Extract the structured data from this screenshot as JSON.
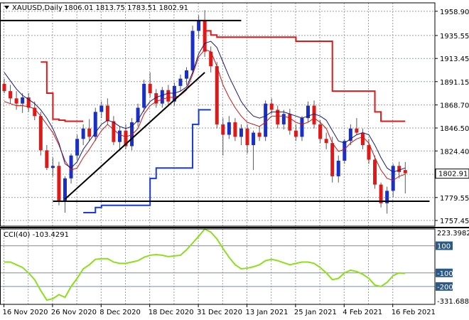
{
  "header": {
    "symbol": "XAUUSD,Daily",
    "ohlc": "1806.01 1813.75 1783.51 1802.91"
  },
  "indicator": {
    "label": "CCI(40) -103.4291"
  },
  "price_axis": {
    "ticks": [
      "1958.90",
      "1935.55",
      "1913.45",
      "1891.15",
      "1868.70",
      "1846.50",
      "1824.40",
      "1779.55",
      "1757.45"
    ],
    "current": "1802.91"
  },
  "cci_axis": {
    "ticks": [
      "223.3982",
      "100",
      "-100",
      "-200",
      "-331.6881"
    ]
  },
  "dates": [
    "16 Nov 2020",
    "26 Nov 2020",
    "8 Dec 2020",
    "18 Dec 2020",
    "31 Dec 2020",
    "13 Jan 2021",
    "25 Jan 2021",
    "4 Feb 2021",
    "16 Feb 2021"
  ],
  "colors": {
    "bull": "#1a2fc8",
    "bear": "#e01818",
    "wick": "#5a5a5a",
    "ma_fast": "#d01515",
    "ma_slow": "#1a1a7a",
    "stop_high": "#e01818",
    "stop_low": "#1a3adc",
    "cci": "#8ce01a",
    "grid": "#9aa0a6",
    "axis": "#000000"
  },
  "chart_data": [
    {
      "type": "candlestick",
      "y_axis_ticks": [
        1958.9,
        1935.55,
        1913.45,
        1891.15,
        1868.7,
        1846.5,
        1824.4,
        1779.55,
        1757.45
      ],
      "ylim": [
        1752,
        1967
      ],
      "x_tick_labels": [
        "16 Nov 2020",
        "26 Nov 2020",
        "8 Dec 2020",
        "18 Dec 2020",
        "31 Dec 2020",
        "13 Jan 2021",
        "25 Jan 2021",
        "4 Feb 2021",
        "16 Feb 2021"
      ],
      "x_tick_bar_index": [
        0,
        8,
        16,
        24,
        32,
        40,
        48,
        56,
        64
      ],
      "last_price": 1802.91,
      "candles": [
        [
          1889,
          1894,
          1880,
          1882
        ],
        [
          1882,
          1888,
          1870,
          1875
        ],
        [
          1875,
          1882,
          1864,
          1870
        ],
        [
          1870,
          1880,
          1861,
          1876
        ],
        [
          1876,
          1880,
          1862,
          1866
        ],
        [
          1866,
          1872,
          1854,
          1858
        ],
        [
          1858,
          1862,
          1820,
          1825
        ],
        [
          1825,
          1830,
          1806,
          1808
        ],
        [
          1808,
          1818,
          1800,
          1810
        ],
        [
          1810,
          1814,
          1772,
          1776
        ],
        [
          1776,
          1800,
          1765,
          1798
        ],
        [
          1798,
          1822,
          1793,
          1820
        ],
        [
          1820,
          1840,
          1816,
          1836
        ],
        [
          1836,
          1850,
          1830,
          1846
        ],
        [
          1846,
          1855,
          1834,
          1838
        ],
        [
          1838,
          1866,
          1834,
          1862
        ],
        [
          1862,
          1872,
          1856,
          1868
        ],
        [
          1868,
          1875,
          1850,
          1853
        ],
        [
          1853,
          1858,
          1830,
          1833
        ],
        [
          1833,
          1848,
          1825,
          1844
        ],
        [
          1844,
          1850,
          1826,
          1829
        ],
        [
          1829,
          1856,
          1825,
          1852
        ],
        [
          1852,
          1870,
          1848,
          1866
        ],
        [
          1866,
          1893,
          1862,
          1889
        ],
        [
          1889,
          1900,
          1876,
          1880
        ],
        [
          1880,
          1884,
          1866,
          1870
        ],
        [
          1870,
          1886,
          1866,
          1883
        ],
        [
          1883,
          1888,
          1868,
          1872
        ],
        [
          1872,
          1890,
          1868,
          1887
        ],
        [
          1887,
          1898,
          1882,
          1894
        ],
        [
          1894,
          1905,
          1888,
          1902
        ],
        [
          1902,
          1945,
          1898,
          1940
        ],
        [
          1940,
          1955,
          1932,
          1950
        ],
        [
          1950,
          1960,
          1915,
          1920
        ],
        [
          1920,
          1925,
          1900,
          1906
        ],
        [
          1906,
          1910,
          1846,
          1850
        ],
        [
          1850,
          1856,
          1820,
          1840
        ],
        [
          1840,
          1858,
          1836,
          1852
        ],
        [
          1852,
          1856,
          1834,
          1838
        ],
        [
          1838,
          1850,
          1830,
          1846
        ],
        [
          1846,
          1850,
          1822,
          1830
        ],
        [
          1830,
          1844,
          1806,
          1842
        ],
        [
          1842,
          1848,
          1834,
          1838
        ],
        [
          1838,
          1873,
          1834,
          1870
        ],
        [
          1870,
          1875,
          1860,
          1864
        ],
        [
          1864,
          1868,
          1846,
          1850
        ],
        [
          1850,
          1864,
          1845,
          1860
        ],
        [
          1860,
          1865,
          1840,
          1844
        ],
        [
          1844,
          1850,
          1834,
          1838
        ],
        [
          1838,
          1858,
          1834,
          1856
        ],
        [
          1856,
          1872,
          1852,
          1868
        ],
        [
          1868,
          1873,
          1846,
          1850
        ],
        [
          1850,
          1854,
          1832,
          1836
        ],
        [
          1836,
          1842,
          1826,
          1832
        ],
        [
          1832,
          1838,
          1794,
          1800
        ],
        [
          1800,
          1820,
          1794,
          1815
        ],
        [
          1815,
          1836,
          1812,
          1834
        ],
        [
          1834,
          1850,
          1830,
          1846
        ],
        [
          1846,
          1856,
          1840,
          1842
        ],
        [
          1842,
          1846,
          1826,
          1830
        ],
        [
          1830,
          1836,
          1812,
          1816
        ],
        [
          1816,
          1820,
          1788,
          1792
        ],
        [
          1792,
          1794,
          1770,
          1774
        ],
        [
          1774,
          1790,
          1764,
          1786
        ],
        [
          1786,
          1812,
          1780,
          1810
        ],
        [
          1810,
          1814,
          1798,
          1804
        ],
        [
          1806,
          1813.75,
          1783.51,
          1802.91
        ]
      ],
      "series": [
        {
          "name": "",
          "kind": "line",
          "values": [
            1872,
            1870,
            1868,
            1868,
            1867,
            1865,
            1858,
            1850,
            1842,
            1830,
            1815,
            1806,
            1808,
            1818,
            1826,
            1835,
            1844,
            1850,
            1845,
            1840,
            1838,
            1840,
            1846,
            1860,
            1868,
            1872,
            1874,
            1876,
            1876,
            1878,
            1883,
            1898,
            1915,
            1922,
            1920,
            1906,
            1888,
            1876,
            1866,
            1858,
            1852,
            1850,
            1848,
            1852,
            1858,
            1858,
            1858,
            1856,
            1852,
            1850,
            1852,
            1856,
            1852,
            1846,
            1832,
            1824,
            1826,
            1832,
            1836,
            1838,
            1832,
            1818,
            1806,
            1798,
            1796,
            1800,
            1802
          ]
        },
        {
          "name": "",
          "kind": "line",
          "values": [
            1900,
            1892,
            1884,
            1878,
            1874,
            1870,
            1864,
            1856,
            1846,
            1832,
            1812,
            1808,
            1814,
            1826,
            1834,
            1842,
            1850,
            1854,
            1852,
            1848,
            1846,
            1848,
            1854,
            1864,
            1872,
            1876,
            1878,
            1880,
            1880,
            1882,
            1886,
            1900,
            1918,
            1928,
            1930,
            1924,
            1910,
            1896,
            1884,
            1872,
            1864,
            1858,
            1856,
            1858,
            1862,
            1862,
            1862,
            1860,
            1858,
            1856,
            1858,
            1860,
            1858,
            1854,
            1844,
            1834,
            1832,
            1836,
            1840,
            1842,
            1840,
            1830,
            1818,
            1808,
            1804,
            1806,
            1808
          ]
        },
        {
          "name": "",
          "kind": "line",
          "values": [
            null,
            null,
            null,
            null,
            null,
            null,
            1910,
            1880,
            1855,
            1854,
            1853,
            1853,
            1853,
            1853,
            null,
            null,
            null,
            null,
            null,
            null,
            null,
            null,
            null,
            null,
            null,
            null,
            null,
            null,
            null,
            null,
            null,
            null,
            null,
            1940,
            1936,
            1934,
            1934,
            1934,
            1934,
            1934,
            1934,
            1934,
            1934,
            1934,
            1934,
            1934,
            1934,
            1934,
            1930,
            1930,
            1930,
            1930,
            1930,
            1930,
            1882,
            1882,
            1882,
            1882,
            1882,
            1882,
            1882,
            1862,
            1853,
            1853,
            1853,
            1853,
            1853
          ]
        },
        {
          "name": "",
          "kind": "line",
          "values": [
            null,
            null,
            null,
            null,
            null,
            null,
            null,
            null,
            null,
            null,
            null,
            null,
            null,
            1765,
            1765,
            1770,
            1772,
            1772,
            1772,
            1772,
            1772,
            1772,
            1772,
            1772,
            1798,
            1808,
            1808,
            1808,
            1808,
            1808,
            1808,
            1850,
            1864,
            1864,
            1864
          ]
        },
        {
          "name": "",
          "kind": "trendline",
          "points": [
            [
              -1,
              1950
            ],
            [
              39,
              1950
            ]
          ]
        },
        {
          "name": "",
          "kind": "trendline",
          "points": [
            [
              10,
              1778
            ],
            [
              33,
              1900
            ]
          ]
        },
        {
          "name": "",
          "kind": "trendline",
          "points": [
            [
              8,
              1776
            ],
            [
              70,
              1776
            ]
          ]
        }
      ]
    },
    {
      "type": "line",
      "name": "CCI(40)",
      "y_axis_ticks": [
        223.3982,
        100,
        -100,
        -200,
        -331.6881
      ],
      "ylim": [
        -331.6881,
        223.3982
      ],
      "reference_levels": [
        100,
        -100,
        -200
      ],
      "current": -103.4291,
      "values": [
        -20,
        -20,
        -40,
        -60,
        -100,
        -150,
        -230,
        -300,
        -290,
        -260,
        -280,
        -200,
        -140,
        -70,
        -40,
        0,
        5,
        5,
        -20,
        -30,
        -30,
        -20,
        -10,
        15,
        30,
        35,
        30,
        20,
        25,
        30,
        70,
        120,
        170,
        223,
        200,
        150,
        80,
        15,
        -40,
        -70,
        -65,
        -55,
        -40,
        -10,
        0,
        -10,
        -25,
        -40,
        -30,
        -20,
        -20,
        -30,
        -60,
        -100,
        -150,
        -140,
        -100,
        -80,
        -90,
        -110,
        -140,
        -190,
        -200,
        -170,
        -120,
        -100,
        -103.43
      ]
    }
  ]
}
